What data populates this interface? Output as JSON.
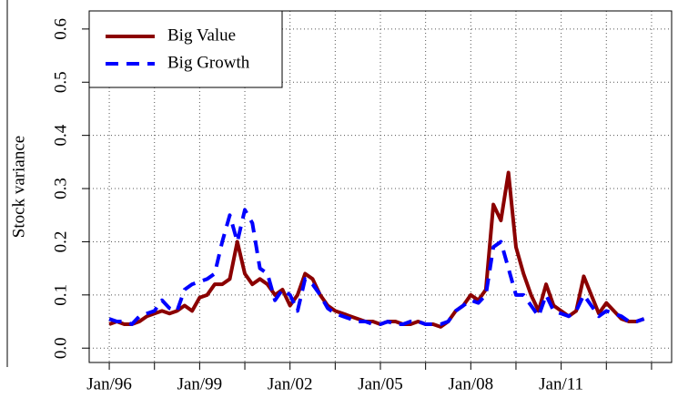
{
  "chart_data": {
    "type": "line",
    "ylabel": "Stock variance",
    "x": [
      "Jan/96",
      "Apr/96",
      "Jul/96",
      "Oct/96",
      "Jan/97",
      "Apr/97",
      "Jul/97",
      "Oct/97",
      "Jan/98",
      "Apr/98",
      "Jul/98",
      "Oct/98",
      "Jan/99",
      "Apr/99",
      "Jul/99",
      "Oct/99",
      "Jan/00",
      "Apr/00",
      "Jul/00",
      "Oct/00",
      "Jan/01",
      "Apr/01",
      "Jul/01",
      "Oct/01",
      "Jan/02",
      "Apr/02",
      "Jul/02",
      "Oct/02",
      "Jan/03",
      "Apr/03",
      "Jul/03",
      "Oct/03",
      "Jan/04",
      "Apr/04",
      "Jul/04",
      "Oct/04",
      "Jan/05",
      "Apr/05",
      "Jul/05",
      "Oct/05",
      "Jan/06",
      "Apr/06",
      "Jul/06",
      "Oct/06",
      "Jan/07",
      "Apr/07",
      "Jul/07",
      "Oct/07",
      "Jan/08",
      "Apr/08",
      "Jul/08",
      "Oct/08",
      "Jan/09",
      "Apr/09",
      "Jul/09",
      "Oct/09",
      "Jan/10",
      "Apr/10",
      "Jul/10",
      "Oct/10",
      "Jan/11",
      "Apr/11",
      "Jul/11",
      "Oct/11",
      "Jan/12",
      "Apr/12",
      "Jul/12",
      "Oct/12",
      "Jan/13",
      "Apr/13",
      "Jul/13",
      "Oct/13"
    ],
    "series": [
      {
        "name": "Big Value",
        "color": "#8b0000",
        "dash": false,
        "values": [
          0.045,
          0.05,
          0.045,
          0.045,
          0.05,
          0.06,
          0.065,
          0.07,
          0.065,
          0.07,
          0.08,
          0.07,
          0.095,
          0.1,
          0.12,
          0.12,
          0.13,
          0.2,
          0.14,
          0.12,
          0.13,
          0.12,
          0.1,
          0.11,
          0.08,
          0.1,
          0.14,
          0.13,
          0.1,
          0.08,
          0.07,
          0.065,
          0.06,
          0.055,
          0.05,
          0.05,
          0.045,
          0.05,
          0.05,
          0.045,
          0.045,
          0.05,
          0.045,
          0.045,
          0.04,
          0.05,
          0.07,
          0.08,
          0.1,
          0.09,
          0.11,
          0.27,
          0.24,
          0.33,
          0.19,
          0.14,
          0.1,
          0.07,
          0.12,
          0.08,
          0.07,
          0.06,
          0.07,
          0.135,
          0.1,
          0.065,
          0.085,
          0.07,
          0.055,
          0.05,
          0.05,
          0.055
        ]
      },
      {
        "name": "Big Growth",
        "color": "#0000ff",
        "dash": true,
        "values": [
          0.055,
          0.05,
          0.05,
          0.045,
          0.06,
          0.065,
          0.07,
          0.09,
          0.075,
          0.07,
          0.11,
          0.12,
          0.125,
          0.13,
          0.14,
          0.2,
          0.25,
          0.2,
          0.26,
          0.235,
          0.15,
          0.14,
          0.09,
          0.11,
          0.1,
          0.07,
          0.13,
          0.12,
          0.1,
          0.075,
          0.065,
          0.06,
          0.055,
          0.05,
          0.05,
          0.045,
          0.045,
          0.05,
          0.045,
          0.045,
          0.05,
          0.05,
          0.045,
          0.045,
          0.045,
          0.05,
          0.07,
          0.08,
          0.09,
          0.085,
          0.1,
          0.19,
          0.2,
          0.15,
          0.1,
          0.1,
          0.08,
          0.06,
          0.1,
          0.07,
          0.065,
          0.06,
          0.07,
          0.1,
          0.08,
          0.06,
          0.07,
          0.065,
          0.06,
          0.05,
          0.05,
          0.055
        ]
      }
    ],
    "xlim": [
      "May/95",
      "Sep/14"
    ],
    "xticks": [
      "Jan/96",
      {
        "value": "Jul/97",
        "label": null
      },
      "Jan/99",
      {
        "value": "Jul/00",
        "label": null
      },
      "Jan/02",
      {
        "value": "Jul/03",
        "label": null
      },
      "Jan/05",
      {
        "value": "Jul/06",
        "label": null
      },
      "Jan/08",
      {
        "value": "Jul/09",
        "label": null
      },
      "Jan/11",
      {
        "value": "Jul/12",
        "label": null
      },
      {
        "value": "Jan/14",
        "label": null
      }
    ],
    "ylim": [
      -0.027,
      0.634
    ],
    "yticks": [
      {
        "value": 0,
        "label": "0.0"
      },
      0.1,
      0.2,
      0.3,
      0.4,
      0.5,
      0.6
    ],
    "grid": true,
    "legend": "top-left"
  }
}
